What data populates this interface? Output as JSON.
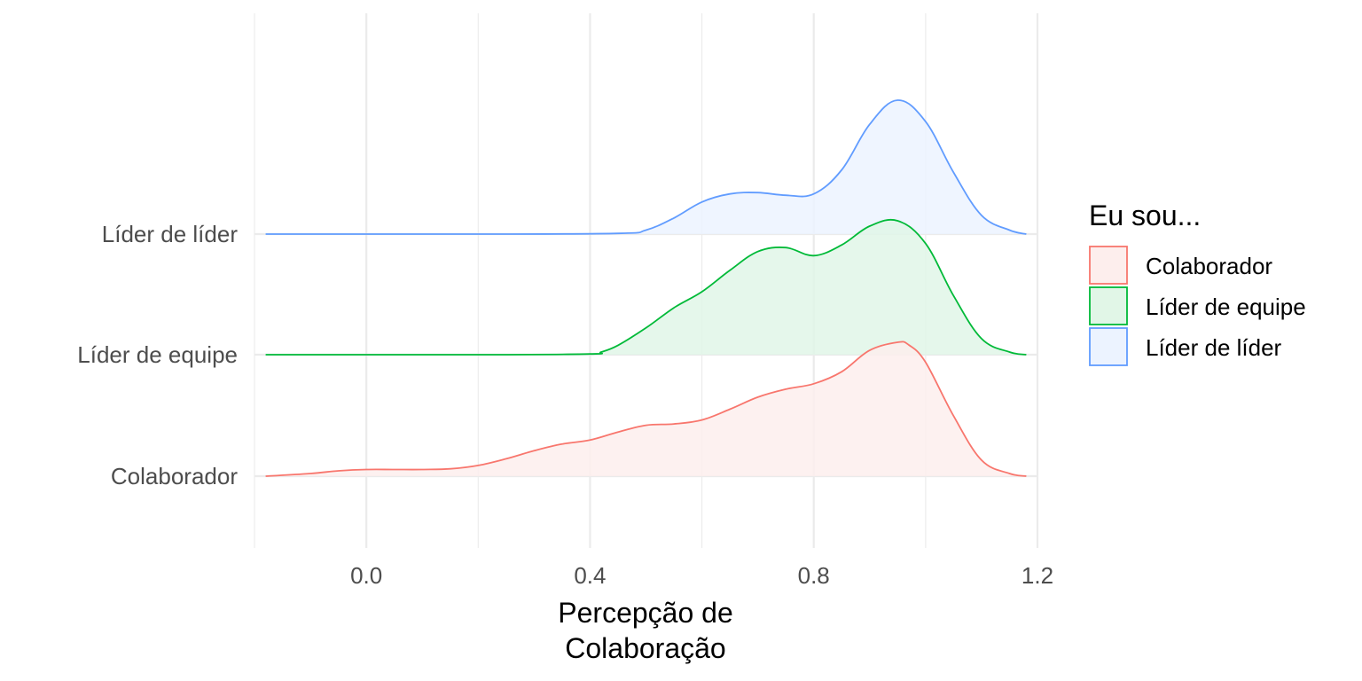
{
  "chart_data": {
    "type": "area",
    "subtype": "ridgeline-density",
    "title": "",
    "xlabel": [
      "Percepção de",
      "Colaboração"
    ],
    "ylabel": "",
    "xlim": [
      -0.2,
      1.2
    ],
    "x_ticks": [
      0.0,
      0.4,
      0.8,
      1.2
    ],
    "x_tick_labels": [
      "0.0",
      "0.4",
      "0.8",
      "1.2"
    ],
    "grid": true,
    "legend": {
      "title": "Eu sou...",
      "placement": "right",
      "entries": [
        "Colaborador",
        "Líder de equipe",
        "Líder de líder"
      ]
    },
    "categories": [
      "Colaborador",
      "Líder de equipe",
      "Líder de líder"
    ],
    "series": [
      {
        "name": "Colaborador",
        "color": "#F8766D",
        "fill": "#FDEEED",
        "x": [
          -0.18,
          -0.1,
          -0.05,
          0.0,
          0.05,
          0.1,
          0.15,
          0.2,
          0.25,
          0.3,
          0.35,
          0.4,
          0.45,
          0.5,
          0.55,
          0.6,
          0.65,
          0.7,
          0.75,
          0.8,
          0.85,
          0.9,
          0.95,
          0.97,
          1.0,
          1.05,
          1.1,
          1.15,
          1.18
        ],
        "y": [
          0.0,
          0.02,
          0.04,
          0.05,
          0.05,
          0.05,
          0.055,
          0.08,
          0.13,
          0.19,
          0.24,
          0.27,
          0.33,
          0.38,
          0.39,
          0.42,
          0.5,
          0.59,
          0.65,
          0.69,
          0.78,
          0.94,
          1.0,
          0.98,
          0.85,
          0.45,
          0.12,
          0.02,
          0.0
        ]
      },
      {
        "name": "Líder de equipe",
        "color": "#00BA38",
        "fill": "#E1F6E7",
        "x": [
          -0.18,
          0.0,
          0.2,
          0.4,
          0.42,
          0.45,
          0.5,
          0.55,
          0.6,
          0.65,
          0.7,
          0.75,
          0.8,
          0.85,
          0.9,
          0.95,
          1.0,
          1.05,
          1.1,
          1.15,
          1.18
        ],
        "y": [
          0.0,
          0.0,
          0.0,
          0.005,
          0.02,
          0.07,
          0.2,
          0.35,
          0.47,
          0.63,
          0.77,
          0.8,
          0.74,
          0.82,
          0.96,
          1.0,
          0.83,
          0.44,
          0.12,
          0.02,
          0.0
        ]
      },
      {
        "name": "Líder de líder",
        "color": "#619CFF",
        "fill": "#ECF3FF",
        "x": [
          -0.18,
          0.0,
          0.2,
          0.45,
          0.5,
          0.55,
          0.6,
          0.65,
          0.7,
          0.75,
          0.8,
          0.85,
          0.9,
          0.95,
          1.0,
          1.05,
          1.1,
          1.15,
          1.18
        ],
        "y": [
          0.0,
          0.0,
          0.0,
          0.005,
          0.03,
          0.12,
          0.24,
          0.3,
          0.31,
          0.29,
          0.3,
          0.48,
          0.82,
          1.0,
          0.84,
          0.46,
          0.14,
          0.03,
          0.0
        ]
      }
    ]
  }
}
